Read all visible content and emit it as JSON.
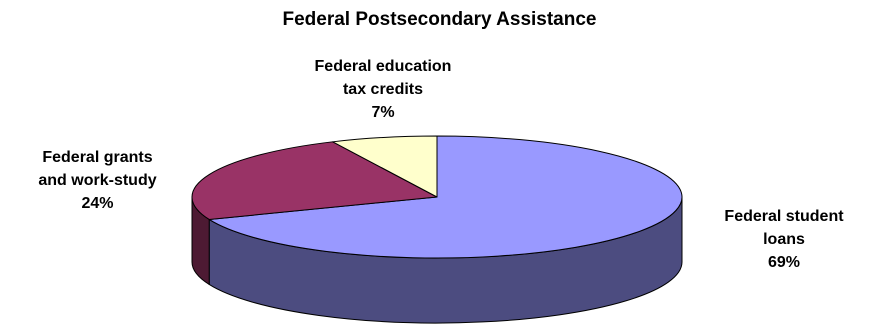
{
  "chart_data": {
    "type": "pie",
    "title": "Federal Postsecondary Assistance",
    "style": "3d",
    "slices": [
      {
        "label_lines": [
          "Federal student",
          "loans"
        ],
        "value": 69,
        "value_label": "69%",
        "color": "#9999ff",
        "side_color": "#4c4c80"
      },
      {
        "label_lines": [
          "Federal grants",
          "and work-study"
        ],
        "value": 24,
        "value_label": "24%",
        "color": "#993366",
        "side_color": "#4d1a33"
      },
      {
        "label_lines": [
          "Federal education",
          "tax credits"
        ],
        "value": 7,
        "value_label": "7%",
        "color": "#ffffcc",
        "side_color": "#808066"
      }
    ],
    "legend": "none",
    "edge_color": "#000000"
  }
}
